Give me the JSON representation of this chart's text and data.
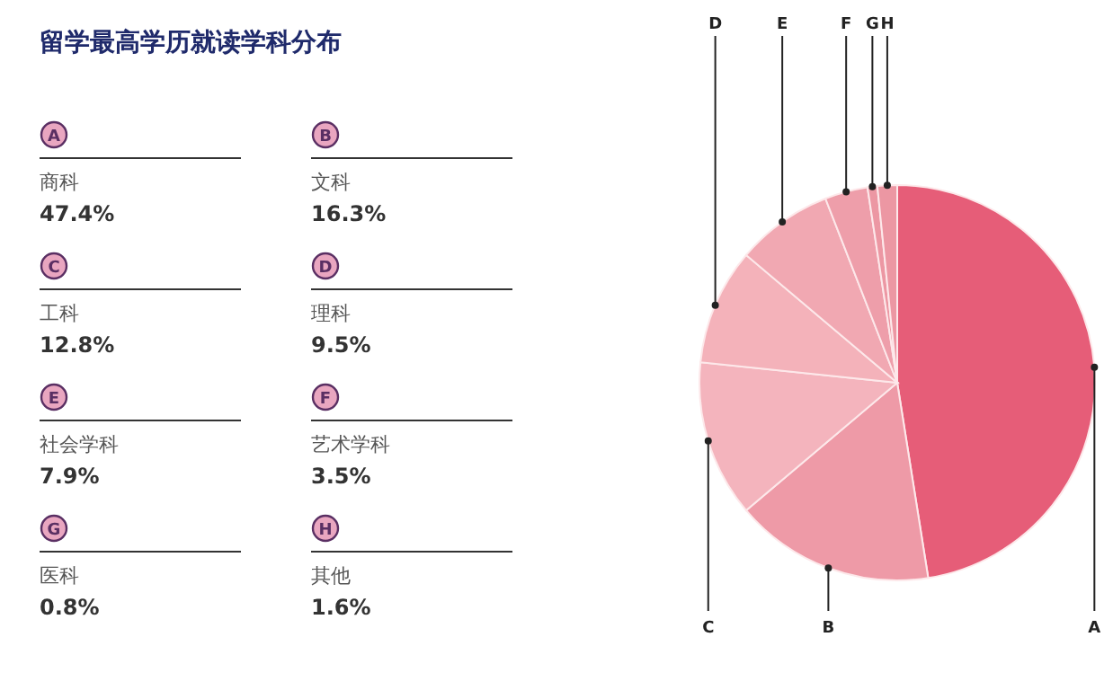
{
  "chart_data": [
    {
      "type": "pie",
      "categories": [
        "A",
        "B",
        "C",
        "D",
        "E",
        "F",
        "G",
        "H"
      ],
      "values": [
        47.4,
        16.3,
        12.8,
        9.5,
        7.9,
        3.5,
        0.8,
        1.6
      ],
      "colors": [
        "#e65d78",
        "#ee9aa7",
        "#f4b4bd",
        "#f4b2ba",
        "#f1a8b2",
        "#ee9eaa",
        "#ec97a3",
        "#ec97a3"
      ]
    },
    {
      "type": "other",
      "title": "留学最高学历就读学科分布",
      "annotations": [
        "A",
        "商科",
        "47.4%",
        "B",
        "文科",
        "16.3%",
        "C",
        "工科",
        "12.8%",
        "D",
        "理科",
        "9.5%",
        "E",
        "社会学科",
        "7.9%",
        "F",
        "艺术学科",
        "3.5%",
        "G",
        "医科",
        "0.8%",
        "H",
        "其他",
        "1.6%"
      ]
    }
  ]
}
